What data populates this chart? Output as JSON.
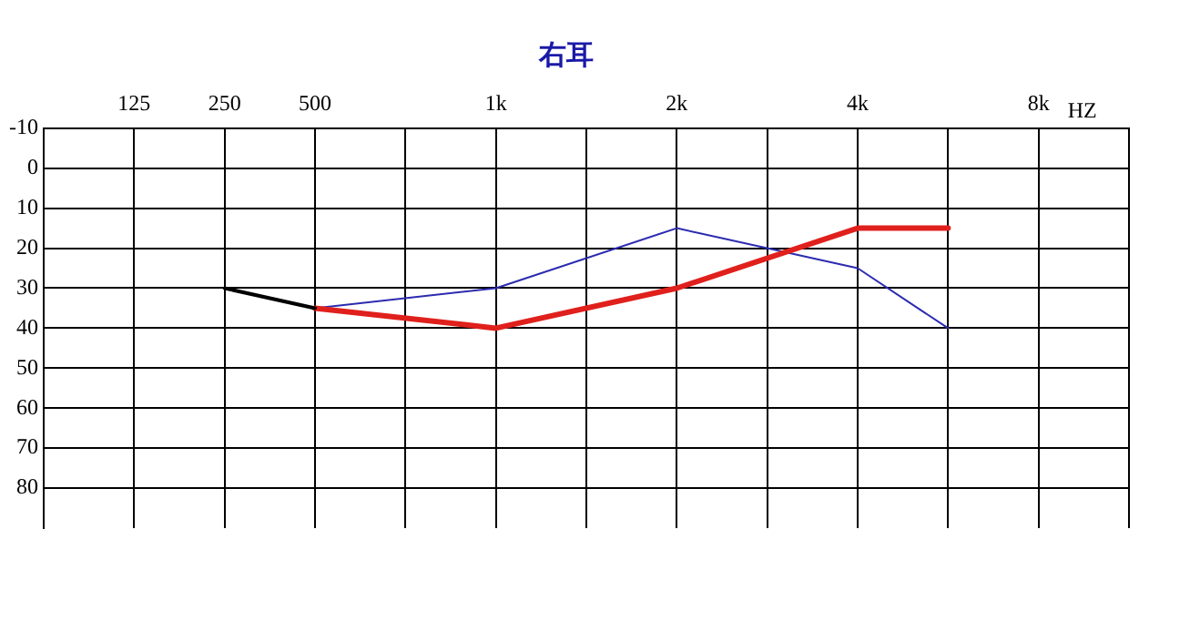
{
  "chart_data": {
    "type": "line",
    "title": "右耳",
    "xlabel": "HZ",
    "categories": [
      null,
      "125",
      "250",
      "500",
      null,
      "1k",
      null,
      "2k",
      null,
      "4k",
      null,
      "8k",
      null
    ],
    "series": [
      {
        "color": "#000000",
        "values": [
          null,
          null,
          30,
          35,
          null,
          null,
          null,
          null,
          null,
          null,
          null,
          null,
          null
        ]
      },
      {
        "color": "#e0201c",
        "values": [
          null,
          null,
          null,
          35,
          null,
          40,
          null,
          30,
          null,
          15,
          15,
          null,
          null
        ]
      },
      {
        "color": "#2b2bb0",
        "values": [
          null,
          null,
          null,
          35,
          null,
          30,
          null,
          15,
          null,
          25,
          40,
          null,
          null
        ]
      }
    ],
    "ylim": [
      90,
      -10
    ],
    "yticks": [
      -10,
      0,
      10,
      20,
      30,
      40,
      50,
      60,
      70,
      80
    ],
    "grid": true,
    "legend": false,
    "marker": "none",
    "line_style": "solid"
  }
}
